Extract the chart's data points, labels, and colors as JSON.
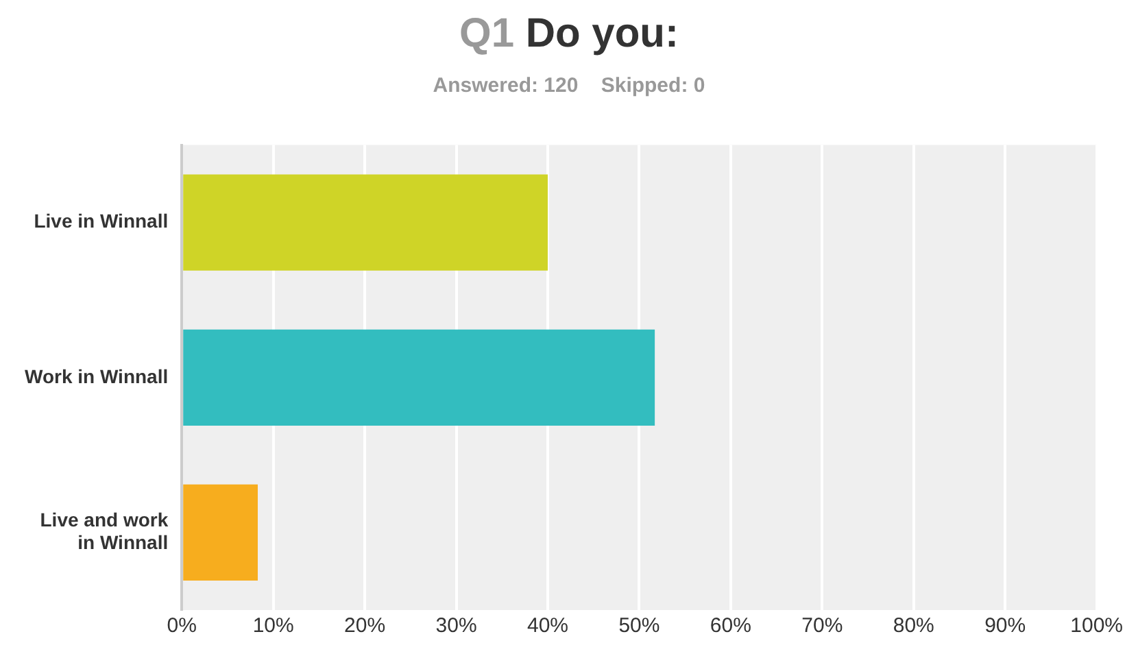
{
  "chart_data": {
    "type": "bar",
    "orientation": "horizontal",
    "title": "Q1 Do you:",
    "subtitle": "Answered: 120    Skipped: 0",
    "categories": [
      "Live in Winnall",
      "Work in Winnall",
      "Live and work in Winnall"
    ],
    "values": [
      40,
      51.7,
      8.3
    ],
    "colors": [
      "#cfd427",
      "#33bdbf",
      "#f7ad1e"
    ],
    "xlim": [
      0,
      100
    ],
    "xticks": [
      {
        "value": 0,
        "label": "0%"
      },
      {
        "value": 10,
        "label": "10%"
      },
      {
        "value": 20,
        "label": "20%"
      },
      {
        "value": 30,
        "label": "30%"
      },
      {
        "value": 40,
        "label": "40%"
      },
      {
        "value": 50,
        "label": "50%"
      },
      {
        "value": 60,
        "label": "60%"
      },
      {
        "value": 70,
        "label": "70%"
      },
      {
        "value": 80,
        "label": "80%"
      },
      {
        "value": 90,
        "label": "90%"
      },
      {
        "value": 100,
        "label": "100%"
      }
    ],
    "grid": "x",
    "legend": false
  }
}
